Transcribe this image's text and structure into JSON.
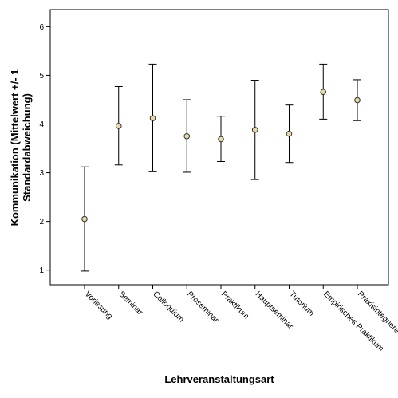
{
  "chart_data": {
    "type": "errorbar",
    "title": "",
    "xlabel": "Lehrveranstaltungsart",
    "ylabel_lines": [
      "Kommunikation (Mittelwert +/- 1",
      "Standardabweichung)"
    ],
    "categories": [
      "Vorlesung",
      "Seminar",
      "Colloquium",
      "Proseminar",
      "Praktikum",
      "Hauptseminar",
      "Tutorium",
      "Empirisches Praktikum",
      "Praxisintegriere"
    ],
    "series": [
      {
        "values": [
          2.05,
          3.96,
          4.12,
          3.75,
          3.69,
          3.88,
          3.8,
          4.66,
          4.49
        ],
        "lower": [
          0.98,
          3.16,
          3.02,
          3.01,
          3.23,
          2.86,
          3.21,
          4.1,
          4.07
        ],
        "upper": [
          3.12,
          4.77,
          5.23,
          4.5,
          4.16,
          4.9,
          4.39,
          5.23,
          4.91
        ]
      }
    ],
    "ylim": [
      0.7,
      6.35
    ],
    "yticks": [
      "1",
      "2",
      "3",
      "4",
      "5",
      "6"
    ],
    "grid": false,
    "colors": {
      "marker_fill": "#e6d9a4",
      "marker_stroke": "#333333",
      "line": "#000000",
      "axis": "#000000"
    }
  }
}
